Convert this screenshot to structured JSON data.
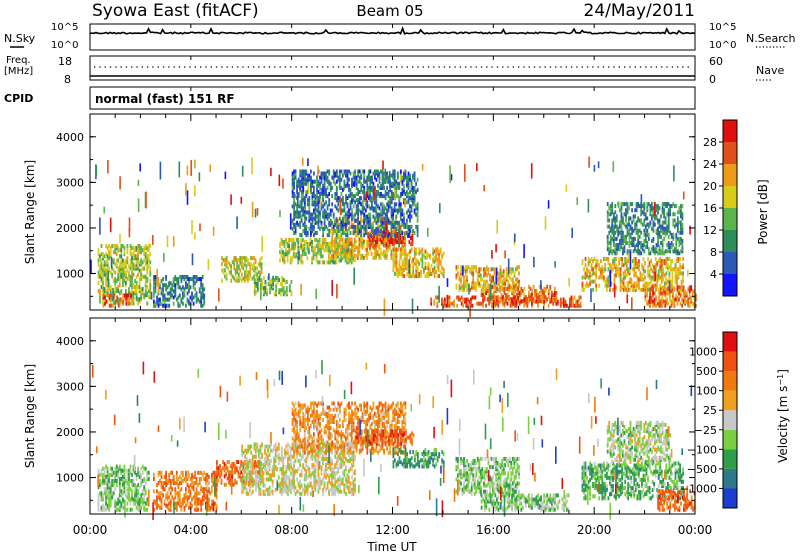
{
  "header": {
    "title": "Syowa East (fitACF)",
    "beam": "Beam 05",
    "date": "24/May/2011"
  },
  "status_panel": {
    "nsky_label": "N.Sky",
    "nsearch_label": "N.Search",
    "nsky_ticks": [
      "10^5",
      "10^0"
    ],
    "nsearch_ticks": [
      "10^5",
      "10^0"
    ],
    "freq_label_1": "Freq.",
    "freq_label_2": "[MHz]",
    "freq_ticks": [
      "18",
      "8"
    ],
    "nave_label": "Nave",
    "nave_ticks": [
      "60",
      "0"
    ],
    "cpid_label": "CPID",
    "cpid_value": "normal (fast) 151 RF"
  },
  "chart_data": [
    {
      "type": "heatmap",
      "panel": "power",
      "ylabel": "Slant Range [km]",
      "ylim": [
        200,
        4500
      ],
      "yticks": [
        "1000",
        "2000",
        "3000",
        "4000"
      ],
      "xticks": [
        "00:00",
        "04:00",
        "08:00",
        "12:00",
        "16:00",
        "20:00",
        "00:00"
      ],
      "colorbar_label": "Power [dB]",
      "colorbar_ticks": [
        "4",
        "8",
        "12",
        "16",
        "20",
        "24",
        "28"
      ],
      "colorbar_colors": [
        "#1414ff",
        "#2c59b6",
        "#2e8e5a",
        "#5cb54b",
        "#d8cc1a",
        "#ee9a1a",
        "#e0501a",
        "#e01010"
      ],
      "regions": [
        {
          "t0": 0.3,
          "t1": 2.4,
          "r0": 300,
          "r1": 1600,
          "level": 3.5
        },
        {
          "t0": 0.5,
          "t1": 1.7,
          "r0": 250,
          "r1": 500,
          "level": 6
        },
        {
          "t0": 2.5,
          "t1": 4.5,
          "r0": 250,
          "r1": 900,
          "level": 1.5
        },
        {
          "t0": 5.2,
          "t1": 6.8,
          "r0": 800,
          "r1": 1300,
          "level": 4
        },
        {
          "t0": 6.5,
          "t1": 8.0,
          "r0": 500,
          "r1": 900,
          "level": 3
        },
        {
          "t0": 7.5,
          "t1": 10.5,
          "r0": 1200,
          "r1": 1700,
          "level": 3.5
        },
        {
          "t0": 9.5,
          "t1": 12.5,
          "r0": 1300,
          "r1": 2200,
          "level": 4.5
        },
        {
          "t0": 11.0,
          "t1": 12.8,
          "r0": 1600,
          "r1": 1900,
          "level": 6.5
        },
        {
          "t0": 8.0,
          "t1": 13.0,
          "r0": 1800,
          "r1": 3200,
          "level": 1.5
        },
        {
          "t0": 12.0,
          "t1": 14.0,
          "r0": 900,
          "r1": 1500,
          "level": 4.5
        },
        {
          "t0": 14.5,
          "t1": 17.0,
          "r0": 600,
          "r1": 1100,
          "level": 4.5
        },
        {
          "t0": 15.5,
          "t1": 18.5,
          "r0": 350,
          "r1": 700,
          "level": 5.5
        },
        {
          "t0": 13.5,
          "t1": 19.5,
          "r0": 250,
          "r1": 450,
          "level": 6
        },
        {
          "t0": 19.5,
          "t1": 23.5,
          "r0": 600,
          "r1": 1300,
          "level": 4.5
        },
        {
          "t0": 20.5,
          "t1": 23.5,
          "r0": 1400,
          "r1": 2500,
          "level": 2
        },
        {
          "t0": 22.0,
          "t1": 24.0,
          "r0": 250,
          "r1": 700,
          "level": 5.5
        }
      ]
    },
    {
      "type": "heatmap",
      "panel": "velocity",
      "ylabel": "Slant Range [km]",
      "ylim": [
        200,
        4500
      ],
      "yticks": [
        "1000",
        "2000",
        "3000",
        "4000"
      ],
      "xticks": [
        "00:00",
        "04:00",
        "08:00",
        "12:00",
        "16:00",
        "20:00",
        "00:00"
      ],
      "xlabel": "Time UT",
      "colorbar_label": "Velocity [m s^-1]",
      "colorbar_ticks": [
        "1000",
        "500",
        "100",
        "25",
        "−25",
        "−100",
        "−500",
        "−1000"
      ],
      "colorbar_colors": [
        "#1c3ed0",
        "#2c7a8a",
        "#2e9e4a",
        "#7ad040",
        "#c8c8c8",
        "#f0a020",
        "#f07a10",
        "#f05010",
        "#e01010"
      ],
      "regions": [
        {
          "t0": 0.3,
          "t1": 2.3,
          "r0": 250,
          "r1": 1200,
          "level": 3
        },
        {
          "t0": 2.5,
          "t1": 5.0,
          "r0": 250,
          "r1": 1100,
          "level": 6
        },
        {
          "t0": 5.0,
          "t1": 6.8,
          "r0": 800,
          "r1": 1300,
          "level": 6.5
        },
        {
          "t0": 6.0,
          "t1": 10.5,
          "r0": 600,
          "r1": 1700,
          "level": 4
        },
        {
          "t0": 8.0,
          "t1": 12.5,
          "r0": 1500,
          "r1": 2600,
          "level": 5.5
        },
        {
          "t0": 10.5,
          "t1": 12.8,
          "r0": 1700,
          "r1": 2000,
          "level": 7
        },
        {
          "t0": 12.0,
          "t1": 14.0,
          "r0": 1200,
          "r1": 1600,
          "level": 2
        },
        {
          "t0": 14.5,
          "t1": 17.0,
          "r0": 600,
          "r1": 1400,
          "level": 3
        },
        {
          "t0": 15.5,
          "t1": 19.0,
          "r0": 250,
          "r1": 600,
          "level": 3
        },
        {
          "t0": 19.5,
          "t1": 23.5,
          "r0": 500,
          "r1": 1300,
          "level": 2.5
        },
        {
          "t0": 20.5,
          "t1": 23.0,
          "r0": 1300,
          "r1": 2200,
          "level": 3.5
        },
        {
          "t0": 22.5,
          "t1": 24.0,
          "r0": 250,
          "r1": 700,
          "level": 6.5
        }
      ]
    }
  ]
}
